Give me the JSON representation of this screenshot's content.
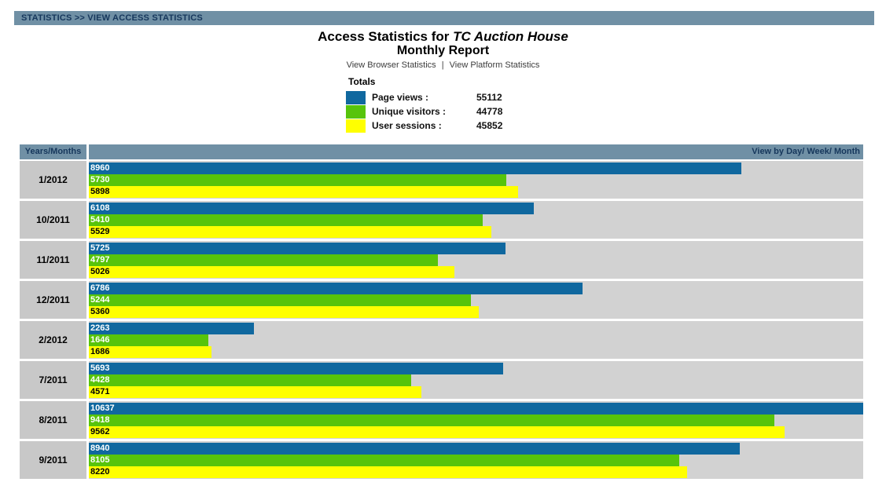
{
  "breadcrumb": "STATISTICS >> VIEW ACCESS STATISTICS",
  "title": {
    "prefix": "Access Statistics for",
    "site_name": "TC Auction House",
    "report_type": "Monthly Report"
  },
  "links": {
    "browser": "View Browser Statistics",
    "separator": "|",
    "platform": "View Platform Statistics"
  },
  "totals": {
    "title": "Totals",
    "items": [
      {
        "label": "Page views :",
        "value": "55112",
        "color": "#10689f"
      },
      {
        "label": "Unique visitors :",
        "value": "44778",
        "color": "#57c40b"
      },
      {
        "label": "User sessions :",
        "value": "45852",
        "color": "#ffff00"
      }
    ]
  },
  "table": {
    "col_left": "Years/Months",
    "col_right": "View by Day/ Week/ Month"
  },
  "chart_data": {
    "type": "bar",
    "orientation": "horizontal",
    "title": "Access Statistics for TC Auction House - Monthly Report",
    "categories": [
      "1/2012",
      "10/2011",
      "11/2011",
      "12/2011",
      "2/2012",
      "7/2011",
      "8/2011",
      "9/2011"
    ],
    "series": [
      {
        "name": "Page views",
        "color": "#10689f",
        "text_color": "#ffffff",
        "values": [
          8960,
          6108,
          5725,
          6786,
          2263,
          5693,
          10637,
          8940
        ]
      },
      {
        "name": "Unique visitors",
        "color": "#57c40b",
        "text_color": "#ffffff",
        "values": [
          5730,
          5410,
          4797,
          5244,
          1646,
          4428,
          9418,
          8105
        ]
      },
      {
        "name": "User sessions",
        "color": "#ffff00",
        "text_color": "#000000",
        "values": [
          5898,
          5529,
          5026,
          5360,
          1686,
          4571,
          9562,
          8220
        ]
      }
    ],
    "totals": {
      "page_views": 55112,
      "unique_visitors": 44778,
      "user_sessions": 45852
    },
    "xmax": 10637,
    "legend_position": "top",
    "grid": false
  },
  "colors": {
    "header_bar": "#7090a5",
    "header_text": "#16375c",
    "row_label_bg": "#c8c8c8",
    "bar_area_bg": "#d2d2d2",
    "page_bg": "#ffffff"
  }
}
